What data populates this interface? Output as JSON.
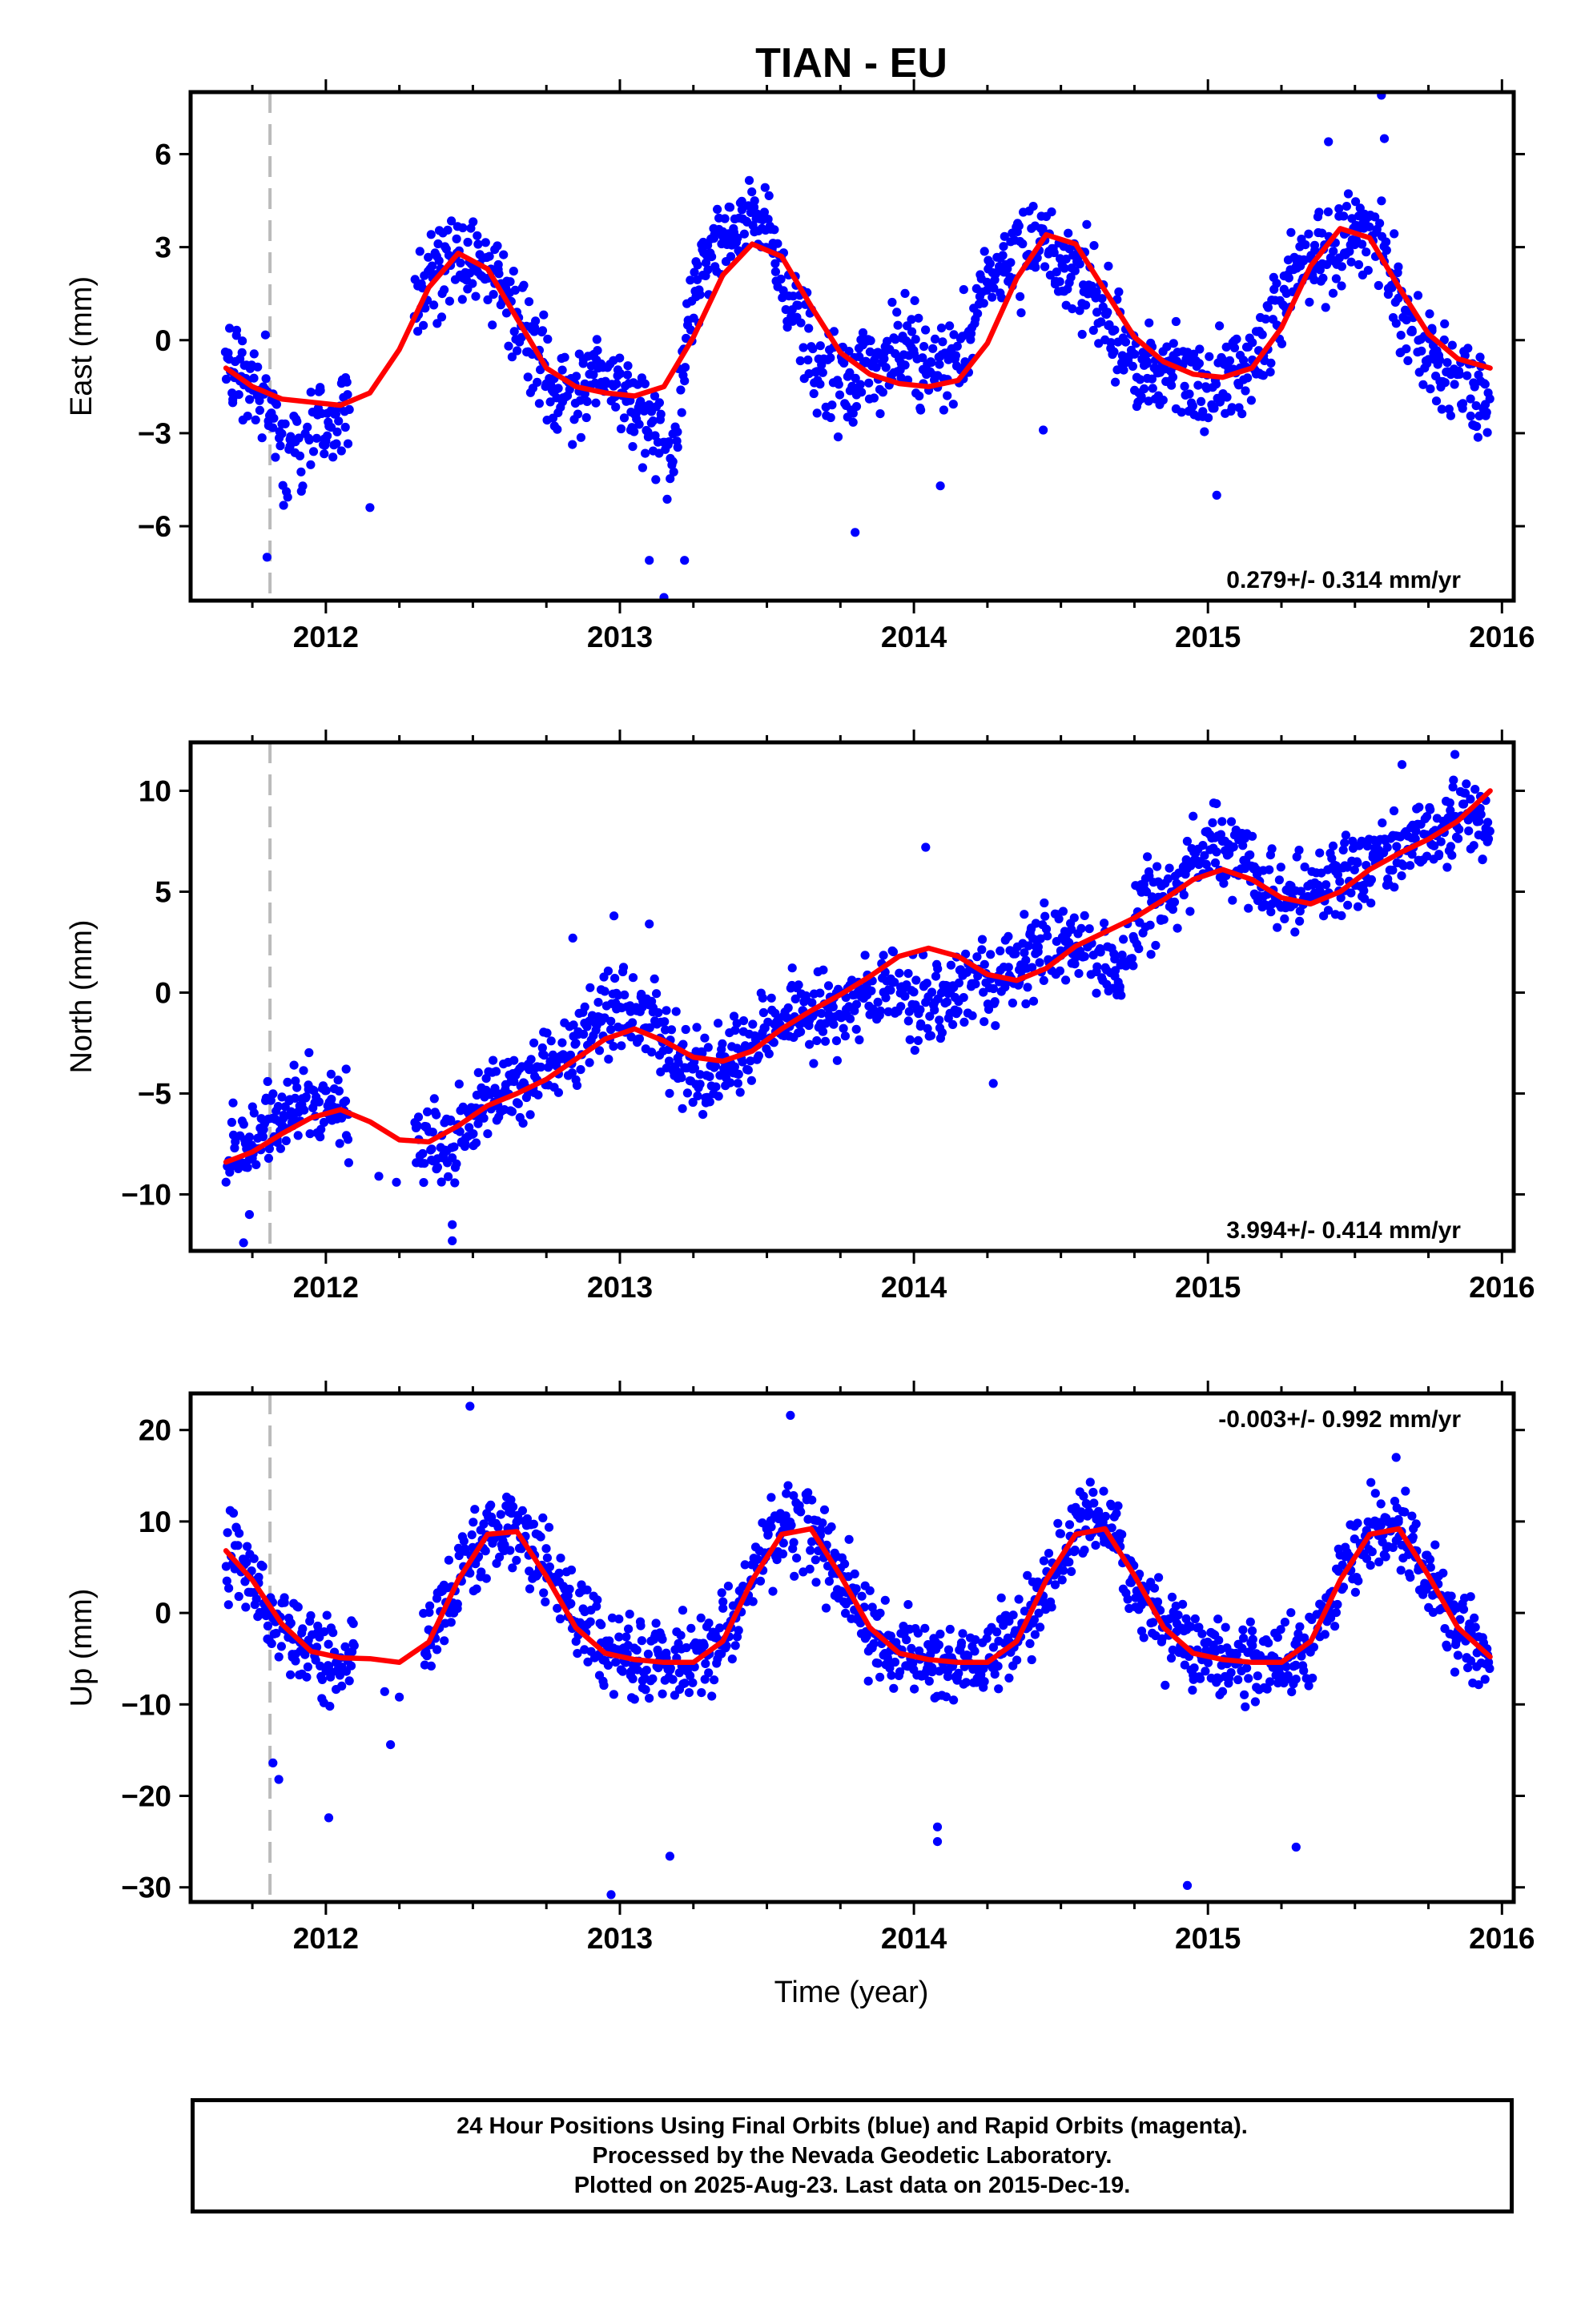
{
  "title": "TIAN - EU",
  "x_label": "Time (year)",
  "x_ticks": [
    2012,
    2013,
    2014,
    2015,
    2016
  ],
  "caption": [
    "24 Hour Positions Using Final Orbits (blue) and Rapid Orbits (magenta).",
    "Processed by the Nevada Geodetic Laboratory.",
    "Plotted on 2025-Aug-23. Last data on 2015-Dec-19."
  ],
  "colors": {
    "points": "#0000ff",
    "fit": "#ff0000",
    "event_line": "#bbbbbb",
    "frame": "#000000"
  },
  "chart_data": [
    {
      "type": "scatter",
      "ylabel": "East (mm)",
      "rate_label": "0.279+/- 0.314 mm/yr",
      "rate_position": "bottom-right",
      "xlim": [
        2011.54,
        2016.04
      ],
      "ylim": [
        -8.4,
        8.0
      ],
      "yticks": [
        -6,
        -3,
        0,
        3,
        6
      ],
      "xticks": [
        2012,
        2013,
        2014,
        2015,
        2016
      ],
      "event_line_x": 2011.81,
      "data_start": 2011.66,
      "data_end": 2015.96,
      "fit": {
        "x": [
          2011.66,
          2011.75,
          2011.85,
          2011.95,
          2012.05,
          2012.15,
          2012.25,
          2012.35,
          2012.45,
          2012.55,
          2012.65,
          2012.75,
          2012.85,
          2012.95,
          2013.05,
          2013.15,
          2013.25,
          2013.35,
          2013.45,
          2013.55,
          2013.65,
          2013.75,
          2013.85,
          2013.95,
          2014.05,
          2014.15,
          2014.25,
          2014.35,
          2014.45,
          2014.55,
          2014.65,
          2014.75,
          2014.85,
          2014.95,
          2015.05,
          2015.15,
          2015.25,
          2015.35,
          2015.45,
          2015.55,
          2015.65,
          2015.75,
          2015.85,
          2015.96
        ],
        "y": [
          -0.9,
          -1.5,
          -1.9,
          -2.0,
          -2.1,
          -1.7,
          -0.3,
          1.7,
          2.8,
          2.3,
          0.7,
          -0.9,
          -1.5,
          -1.7,
          -1.8,
          -1.5,
          0.1,
          2.1,
          3.1,
          2.7,
          1.1,
          -0.4,
          -1.1,
          -1.4,
          -1.5,
          -1.3,
          -0.1,
          2.0,
          3.4,
          3.1,
          1.6,
          0.1,
          -0.7,
          -1.1,
          -1.2,
          -0.9,
          0.4,
          2.4,
          3.6,
          3.3,
          1.7,
          0.2,
          -0.6,
          -0.9
        ]
      },
      "points": {
        "anchors": [
          [
            2011.66,
            -1.0
          ],
          [
            2011.75,
            -1.4
          ],
          [
            2011.8,
            -1.8
          ],
          [
            2011.85,
            -3.8
          ],
          [
            2011.92,
            -3.5
          ],
          [
            2011.98,
            -2.0
          ],
          [
            2012.05,
            -2.2
          ],
          [
            2012.2,
            -1.2
          ],
          [
            2012.3,
            0.8
          ],
          [
            2012.42,
            2.8
          ],
          [
            2012.5,
            2.6
          ],
          [
            2012.6,
            1.6
          ],
          [
            2012.68,
            0.2
          ],
          [
            2012.76,
            -1.6
          ],
          [
            2012.84,
            -2.0
          ],
          [
            2012.92,
            -1.0
          ],
          [
            2012.98,
            -1.4
          ],
          [
            2013.06,
            -2.4
          ],
          [
            2013.12,
            -2.8
          ],
          [
            2013.18,
            -4.0
          ],
          [
            2013.24,
            1.0
          ],
          [
            2013.32,
            3.2
          ],
          [
            2013.42,
            4.0
          ],
          [
            2013.5,
            3.6
          ],
          [
            2013.58,
            1.2
          ],
          [
            2013.66,
            -0.6
          ],
          [
            2013.76,
            -1.6
          ],
          [
            2013.86,
            -0.8
          ],
          [
            2013.96,
            -0.2
          ],
          [
            2014.06,
            -0.8
          ],
          [
            2014.16,
            -0.6
          ],
          [
            2014.24,
            1.6
          ],
          [
            2014.32,
            2.8
          ],
          [
            2014.42,
            3.0
          ],
          [
            2014.52,
            2.4
          ],
          [
            2014.6,
            1.6
          ],
          [
            2014.68,
            0.2
          ],
          [
            2014.76,
            -1.2
          ],
          [
            2014.86,
            -0.8
          ],
          [
            2014.96,
            -1.4
          ],
          [
            2015.06,
            -1.2
          ],
          [
            2015.16,
            -0.6
          ],
          [
            2015.24,
            1.0
          ],
          [
            2015.34,
            2.4
          ],
          [
            2015.44,
            3.2
          ],
          [
            2015.54,
            3.6
          ],
          [
            2015.62,
            2.4
          ],
          [
            2015.7,
            0.0
          ],
          [
            2015.8,
            -1.0
          ],
          [
            2015.9,
            -1.4
          ],
          [
            2015.96,
            -2.2
          ]
        ],
        "noise": 1.2,
        "density": 370,
        "gaps": [
          [
            2012.08,
            2012.3
          ]
        ],
        "outliers": [
          [
            2011.8,
            -7.0
          ],
          [
            2012.15,
            -5.4
          ],
          [
            2013.15,
            -8.3
          ],
          [
            2013.1,
            -7.1
          ],
          [
            2013.22,
            -7.1
          ],
          [
            2013.8,
            -6.2
          ],
          [
            2015.03,
            -5.0
          ],
          [
            2014.09,
            -4.7
          ],
          [
            2014.44,
            -2.9
          ],
          [
            2015.41,
            6.4
          ],
          [
            2015.59,
            7.9
          ],
          [
            2015.6,
            6.5
          ]
        ]
      }
    },
    {
      "type": "scatter",
      "ylabel": "North (mm)",
      "rate_label": "3.994+/- 0.414 mm/yr",
      "rate_position": "bottom-right",
      "xlim": [
        2011.54,
        2016.04
      ],
      "ylim": [
        -12.8,
        12.4
      ],
      "yticks": [
        -10,
        -5,
        0,
        5,
        10
      ],
      "xticks": [
        2012,
        2013,
        2014,
        2015,
        2016
      ],
      "event_line_x": 2011.81,
      "data_start": 2011.66,
      "data_end": 2015.96,
      "fit": {
        "x": [
          2011.66,
          2011.75,
          2011.85,
          2011.95,
          2012.05,
          2012.15,
          2012.25,
          2012.35,
          2012.45,
          2012.55,
          2012.65,
          2012.75,
          2012.85,
          2012.95,
          2013.05,
          2013.15,
          2013.25,
          2013.35,
          2013.45,
          2013.55,
          2013.65,
          2013.75,
          2013.85,
          2013.95,
          2014.05,
          2014.15,
          2014.25,
          2014.35,
          2014.45,
          2014.55,
          2014.65,
          2014.75,
          2014.85,
          2014.95,
          2015.05,
          2015.15,
          2015.25,
          2015.35,
          2015.45,
          2015.55,
          2015.65,
          2015.75,
          2015.85,
          2015.96
        ],
        "y": [
          -8.4,
          -7.9,
          -7.0,
          -6.2,
          -5.8,
          -6.4,
          -7.3,
          -7.4,
          -6.6,
          -5.6,
          -5.0,
          -4.3,
          -3.3,
          -2.3,
          -1.8,
          -2.4,
          -3.2,
          -3.4,
          -2.9,
          -1.8,
          -0.9,
          -0.1,
          0.8,
          1.8,
          2.2,
          1.8,
          0.9,
          0.6,
          1.2,
          2.3,
          3.0,
          3.7,
          4.6,
          5.6,
          6.1,
          5.6,
          4.7,
          4.4,
          5.0,
          6.1,
          6.9,
          7.6,
          8.5,
          10.0
        ]
      },
      "points": {
        "anchors": [
          [
            2011.66,
            -8.6
          ],
          [
            2011.75,
            -7.4
          ],
          [
            2011.8,
            -6.4
          ],
          [
            2011.9,
            -5.6
          ],
          [
            2012.0,
            -5.4
          ],
          [
            2012.1,
            -6.6
          ],
          [
            2012.22,
            -7.6
          ],
          [
            2012.35,
            -7.6
          ],
          [
            2012.45,
            -7.0
          ],
          [
            2012.55,
            -5.2
          ],
          [
            2012.65,
            -4.6
          ],
          [
            2012.75,
            -3.8
          ],
          [
            2012.85,
            -2.6
          ],
          [
            2012.95,
            -1.2
          ],
          [
            2013.05,
            -0.8
          ],
          [
            2013.12,
            -1.4
          ],
          [
            2013.22,
            -3.8
          ],
          [
            2013.32,
            -4.2
          ],
          [
            2013.42,
            -2.6
          ],
          [
            2013.52,
            -2.2
          ],
          [
            2013.6,
            -1.2
          ],
          [
            2013.7,
            -1.4
          ],
          [
            2013.8,
            -0.4
          ],
          [
            2013.9,
            0.2
          ],
          [
            2014.0,
            -0.6
          ],
          [
            2014.1,
            -0.4
          ],
          [
            2014.2,
            0.6
          ],
          [
            2014.3,
            0.4
          ],
          [
            2014.42,
            2.0
          ],
          [
            2014.52,
            2.8
          ],
          [
            2014.6,
            1.6
          ],
          [
            2014.7,
            1.0
          ],
          [
            2014.78,
            4.6
          ],
          [
            2014.88,
            4.8
          ],
          [
            2014.96,
            7.0
          ],
          [
            2015.06,
            7.2
          ],
          [
            2015.16,
            5.8
          ],
          [
            2015.26,
            4.6
          ],
          [
            2015.36,
            4.8
          ],
          [
            2015.46,
            6.2
          ],
          [
            2015.56,
            6.4
          ],
          [
            2015.66,
            7.6
          ],
          [
            2015.76,
            8.0
          ],
          [
            2015.86,
            8.8
          ],
          [
            2015.96,
            8.0
          ]
        ],
        "noise": 1.6,
        "density": 370,
        "gaps": [
          [
            2012.08,
            2012.3
          ]
        ],
        "outliers": [
          [
            2011.72,
            -12.4
          ],
          [
            2011.74,
            -11.0
          ],
          [
            2012.43,
            -12.3
          ],
          [
            2012.43,
            -11.5
          ],
          [
            2012.18,
            -9.1
          ],
          [
            2012.24,
            -9.4
          ],
          [
            2014.04,
            7.2
          ],
          [
            2014.27,
            -4.5
          ],
          [
            2015.84,
            11.8
          ],
          [
            2015.66,
            11.3
          ],
          [
            2012.98,
            3.8
          ],
          [
            2012.84,
            2.7
          ],
          [
            2013.1,
            3.4
          ]
        ]
      }
    },
    {
      "type": "scatter",
      "ylabel": "Up (mm)",
      "rate_label": "-0.003+/- 0.992 mm/yr",
      "rate_position": "top-right",
      "xlim": [
        2011.54,
        2016.04
      ],
      "ylim": [
        -31.6,
        24.0
      ],
      "yticks": [
        -30,
        -20,
        -10,
        0,
        10,
        20
      ],
      "xticks": [
        2012,
        2013,
        2014,
        2015,
        2016
      ],
      "event_line_x": 2011.81,
      "data_start": 2011.66,
      "data_end": 2015.96,
      "fit": {
        "x": [
          2011.66,
          2011.75,
          2011.85,
          2011.95,
          2012.05,
          2012.15,
          2012.25,
          2012.35,
          2012.45,
          2012.55,
          2012.65,
          2012.75,
          2012.85,
          2012.95,
          2013.05,
          2013.15,
          2013.25,
          2013.35,
          2013.45,
          2013.55,
          2013.65,
          2013.75,
          2013.85,
          2013.95,
          2014.05,
          2014.15,
          2014.25,
          2014.35,
          2014.45,
          2014.55,
          2014.65,
          2014.75,
          2014.85,
          2014.95,
          2015.05,
          2015.15,
          2015.25,
          2015.35,
          2015.45,
          2015.55,
          2015.65,
          2015.75,
          2015.85,
          2015.96
        ],
        "y": [
          6.8,
          3.6,
          -1.2,
          -4.2,
          -4.9,
          -5.0,
          -5.4,
          -3.2,
          3.6,
          8.6,
          8.9,
          4.0,
          -1.6,
          -4.4,
          -5.1,
          -5.4,
          -5.4,
          -3.1,
          3.6,
          8.6,
          9.2,
          4.1,
          -1.6,
          -4.4,
          -5.1,
          -5.4,
          -5.4,
          -3.1,
          3.6,
          8.6,
          9.2,
          4.1,
          -1.6,
          -4.4,
          -5.1,
          -5.4,
          -5.4,
          -3.1,
          3.6,
          8.6,
          9.2,
          4.1,
          -1.6,
          -4.8
        ]
      },
      "points": {
        "anchors": [
          [
            2011.66,
            6.4
          ],
          [
            2011.75,
            3.0
          ],
          [
            2011.85,
            -1.6
          ],
          [
            2011.95,
            -4.6
          ],
          [
            2012.05,
            -5.4
          ],
          [
            2012.35,
            -3.0
          ],
          [
            2012.45,
            3.6
          ],
          [
            2012.55,
            8.4
          ],
          [
            2012.65,
            9.4
          ],
          [
            2012.75,
            4.4
          ],
          [
            2012.85,
            -1.2
          ],
          [
            2012.95,
            -4.2
          ],
          [
            2013.05,
            -5.0
          ],
          [
            2013.15,
            -5.4
          ],
          [
            2013.25,
            -5.0
          ],
          [
            2013.35,
            -2.8
          ],
          [
            2013.45,
            3.8
          ],
          [
            2013.55,
            9.0
          ],
          [
            2013.65,
            9.4
          ],
          [
            2013.75,
            4.0
          ],
          [
            2013.85,
            -1.8
          ],
          [
            2013.95,
            -4.8
          ],
          [
            2014.05,
            -5.4
          ],
          [
            2014.15,
            -5.6
          ],
          [
            2014.25,
            -5.2
          ],
          [
            2014.35,
            -2.8
          ],
          [
            2014.45,
            3.8
          ],
          [
            2014.55,
            9.2
          ],
          [
            2014.65,
            9.6
          ],
          [
            2014.75,
            4.0
          ],
          [
            2014.85,
            -1.8
          ],
          [
            2014.95,
            -4.6
          ],
          [
            2015.05,
            -5.2
          ],
          [
            2015.15,
            -5.6
          ],
          [
            2015.25,
            -5.4
          ],
          [
            2015.35,
            -3.0
          ],
          [
            2015.45,
            3.8
          ],
          [
            2015.55,
            9.0
          ],
          [
            2015.65,
            9.6
          ],
          [
            2015.75,
            4.0
          ],
          [
            2015.85,
            -1.8
          ],
          [
            2015.96,
            -5.4
          ]
        ],
        "noise": 3.6,
        "density": 370,
        "gaps": [
          [
            2012.1,
            2012.33
          ]
        ],
        "outliers": [
          [
            2012.97,
            -30.8
          ],
          [
            2013.17,
            -26.6
          ],
          [
            2014.93,
            -29.8
          ],
          [
            2015.3,
            -25.6
          ],
          [
            2012.01,
            -22.4
          ],
          [
            2014.08,
            -25.0
          ],
          [
            2014.08,
            -23.4
          ],
          [
            2012.49,
            22.6
          ],
          [
            2013.58,
            21.6
          ],
          [
            2015.64,
            17.0
          ],
          [
            2012.22,
            -14.4
          ],
          [
            2012.2,
            -8.6
          ],
          [
            2012.25,
            -9.2
          ],
          [
            2011.82,
            -16.4
          ],
          [
            2011.84,
            -18.2
          ]
        ]
      }
    }
  ]
}
